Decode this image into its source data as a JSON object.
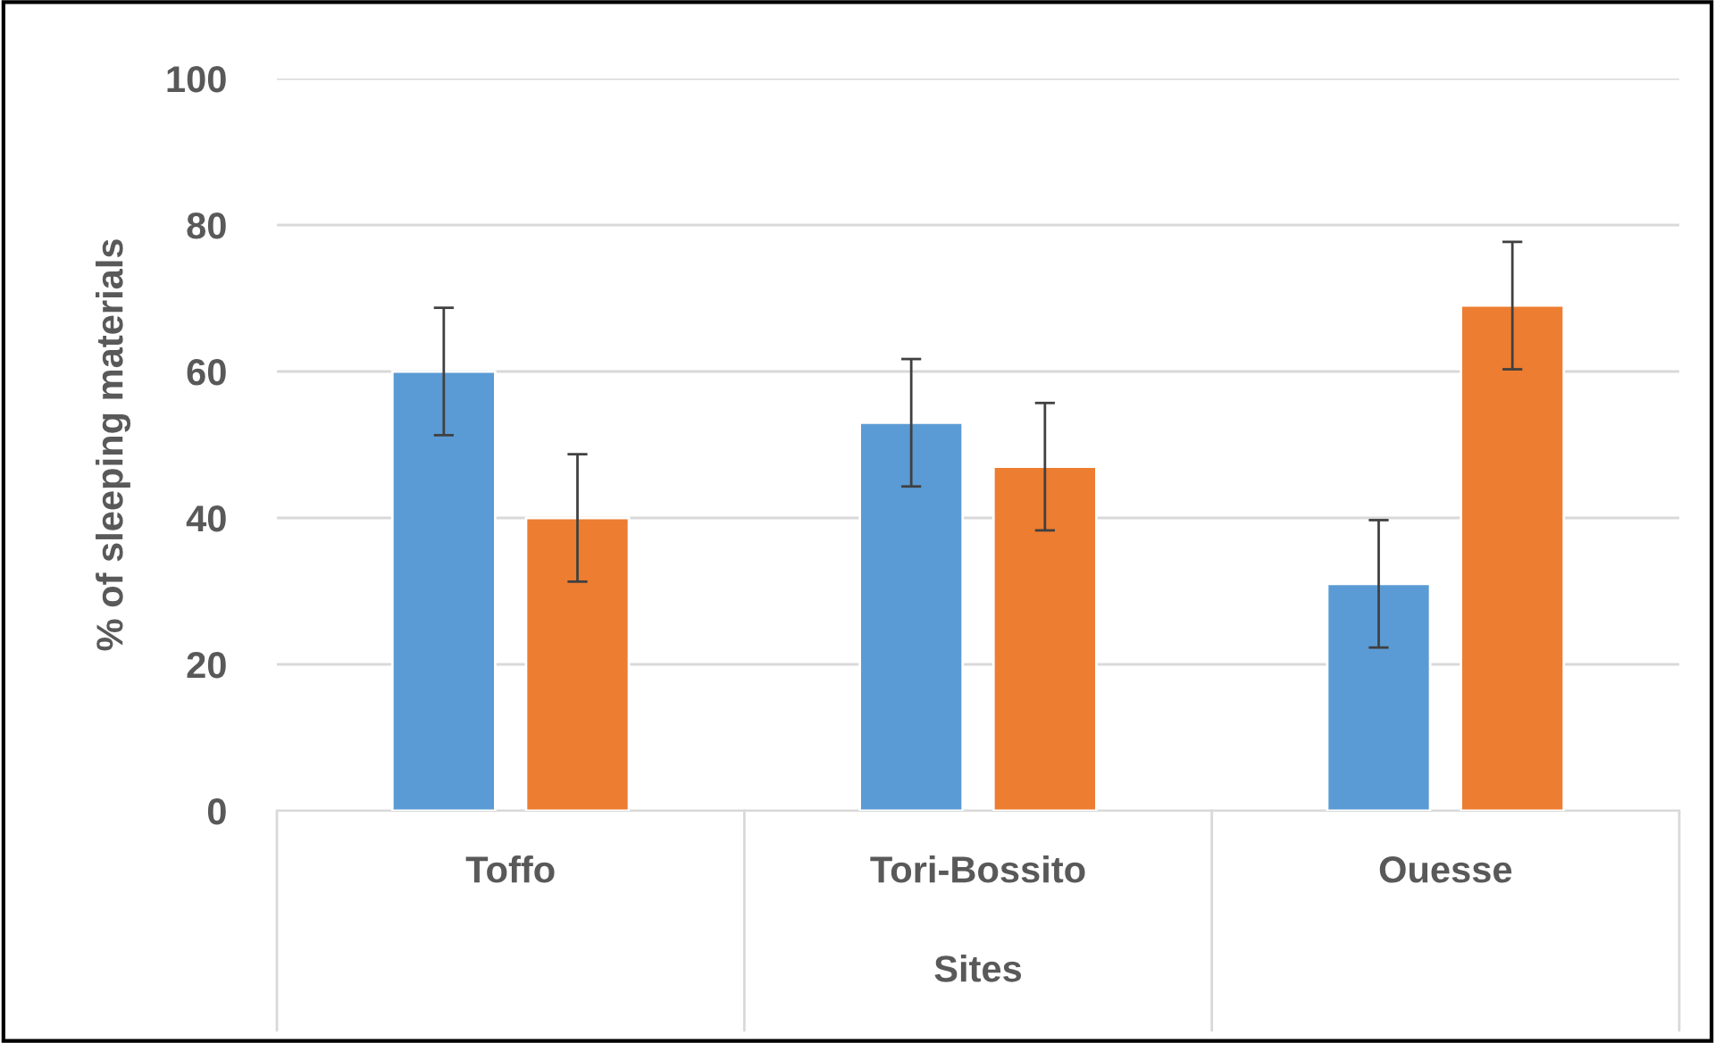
{
  "chart_data": {
    "type": "bar",
    "xlabel": "Sites",
    "ylabel": "% of sleeping materials",
    "categories": [
      "Toffo",
      "Tori-Bossito",
      "Ouesse"
    ],
    "series": [
      {
        "color": "#5b9bd5",
        "values": [
          60,
          53,
          31
        ],
        "errors": [
          8.7,
          8.7,
          8.7
        ]
      },
      {
        "color": "#ed7d31",
        "values": [
          40,
          47,
          69
        ],
        "errors": [
          8.7,
          8.7,
          8.7
        ]
      }
    ],
    "ylim": [
      0,
      100
    ],
    "yticks": [
      0,
      20,
      40,
      60,
      80,
      100
    ],
    "grid": "y"
  }
}
